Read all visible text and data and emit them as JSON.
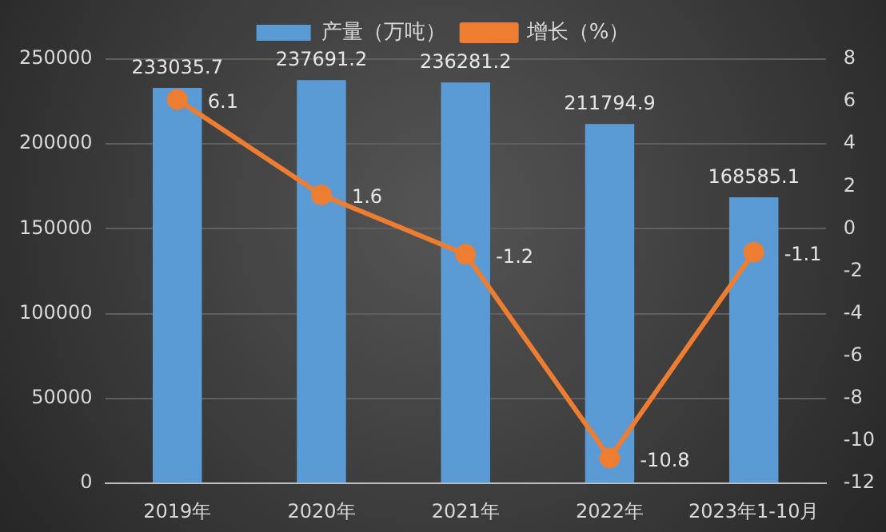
{
  "chart_data": {
    "type": "bar",
    "categories": [
      "2019年",
      "2020年",
      "2021年",
      "2022年",
      "2023年1-10月"
    ],
    "series": [
      {
        "name": "产量（万吨）",
        "color": "#5b9bd5",
        "values": [
          233035.7,
          237691.2,
          236281.2,
          211794.9,
          168585.1
        ]
      },
      {
        "name": "增长（%）",
        "type": "line",
        "axis": "y2",
        "color": "#ed7d31",
        "values": [
          6.1,
          1.6,
          -1.2,
          -10.8,
          -1.1
        ]
      }
    ],
    "ylim": [
      0,
      250000
    ],
    "yticks": [
      0,
      50000,
      100000,
      150000,
      200000,
      250000
    ],
    "y2lim": [
      -12,
      8
    ],
    "y2ticks": [
      -12,
      -10,
      -8,
      -6,
      -4,
      -2,
      0,
      2,
      4,
      6,
      8
    ],
    "grid": "y",
    "legend": "top",
    "marker": "circle",
    "line_style": "solid",
    "data_labels": true
  }
}
